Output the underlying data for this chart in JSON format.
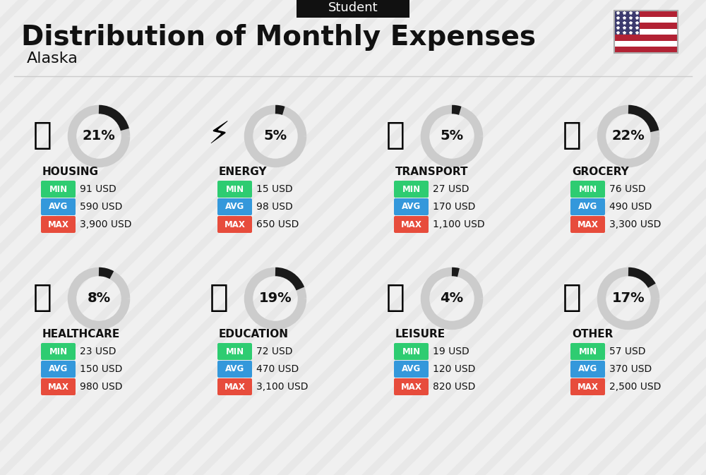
{
  "title": "Distribution of Monthly Expenses",
  "subtitle": "Alaska",
  "header_label": "Student",
  "bg_color": "#f0f0f0",
  "categories": [
    {
      "name": "HOUSING",
      "pct": 21,
      "min": "91 USD",
      "avg": "590 USD",
      "max": "3,900 USD",
      "row": 0,
      "col": 0
    },
    {
      "name": "ENERGY",
      "pct": 5,
      "min": "15 USD",
      "avg": "98 USD",
      "max": "650 USD",
      "row": 0,
      "col": 1
    },
    {
      "name": "TRANSPORT",
      "pct": 5,
      "min": "27 USD",
      "avg": "170 USD",
      "max": "1,100 USD",
      "row": 0,
      "col": 2
    },
    {
      "name": "GROCERY",
      "pct": 22,
      "min": "76 USD",
      "avg": "490 USD",
      "max": "3,300 USD",
      "row": 0,
      "col": 3
    },
    {
      "name": "HEALTHCARE",
      "pct": 8,
      "min": "23 USD",
      "avg": "150 USD",
      "max": "980 USD",
      "row": 1,
      "col": 0
    },
    {
      "name": "EDUCATION",
      "pct": 19,
      "min": "72 USD",
      "avg": "470 USD",
      "max": "3,100 USD",
      "row": 1,
      "col": 1
    },
    {
      "name": "LEISURE",
      "pct": 4,
      "min": "19 USD",
      "avg": "120 USD",
      "max": "820 USD",
      "row": 1,
      "col": 2
    },
    {
      "name": "OTHER",
      "pct": 17,
      "min": "57 USD",
      "avg": "370 USD",
      "max": "2,500 USD",
      "row": 1,
      "col": 3
    }
  ],
  "color_min": "#2ecc71",
  "color_avg": "#3498db",
  "color_max": "#e74c3c",
  "color_label_text": "#ffffff",
  "ring_color_filled": "#1a1a1a",
  "ring_color_empty": "#cccccc",
  "title_fontsize": 28,
  "subtitle_fontsize": 16,
  "header_fontsize": 13
}
